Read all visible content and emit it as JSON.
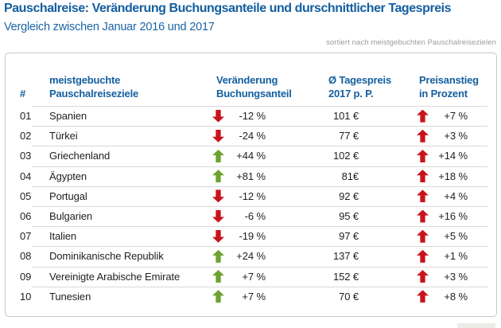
{
  "header": {
    "title": "Pauschalreise: Veränderung Buchungsanteile und durschnittlicher Tagespreis",
    "subtitle": "Vergleich zwischen Januar 2016 und 2017",
    "sort_note": "sortiert nach meistgebuchten Pauschalreisezielen"
  },
  "colors": {
    "brand_blue": "#145fa0",
    "arrow_red": "#c9141c",
    "arrow_green": "#6da32e",
    "row_text": "#1f1f1f",
    "note_gray": "#9b9b9b",
    "table_border": "#c8c8c8",
    "row_separator": "#d8d8d8"
  },
  "table": {
    "columns": {
      "rank": "#",
      "destination": "meistgebuchte\nPauschalreiseziele",
      "change": "Veränderung\nBuchungsanteil",
      "price": "Ø Tagespreis\n2017 p. P.",
      "rise": "Preisanstieg\nin Prozent"
    },
    "rows": [
      {
        "rank": "01",
        "destination": "Spanien",
        "change": "-12 %",
        "change_arrow": "down red",
        "change_icon": "arrow-down-icon",
        "price": "101 €",
        "rise": "+7 %",
        "rise_arrow": "up red",
        "rise_icon": "arrow-up-icon"
      },
      {
        "rank": "02",
        "destination": "Türkei",
        "change": "-24 %",
        "change_arrow": "down red",
        "change_icon": "arrow-down-icon",
        "price": "77 €",
        "rise": "+3 %",
        "rise_arrow": "up red",
        "rise_icon": "arrow-up-icon"
      },
      {
        "rank": "03",
        "destination": "Griechenland",
        "change": "+44 %",
        "change_arrow": "up green",
        "change_icon": "arrow-up-icon",
        "price": "102 €",
        "rise": "+14 %",
        "rise_arrow": "up red",
        "rise_icon": "arrow-up-icon"
      },
      {
        "rank": "04",
        "destination": "Ägypten",
        "change": "+81 %",
        "change_arrow": "up green",
        "change_icon": "arrow-up-icon",
        "price": "81€",
        "rise": "+18 %",
        "rise_arrow": "up red",
        "rise_icon": "arrow-up-icon"
      },
      {
        "rank": "05",
        "destination": "Portugal",
        "change": "-12 %",
        "change_arrow": "down red",
        "change_icon": "arrow-down-icon",
        "price": "92 €",
        "rise": "+4 %",
        "rise_arrow": "up red",
        "rise_icon": "arrow-up-icon"
      },
      {
        "rank": "06",
        "destination": "Bulgarien",
        "change": "-6 %",
        "change_arrow": "down red",
        "change_icon": "arrow-down-icon",
        "price": "95 €",
        "rise": "+16 %",
        "rise_arrow": "up red",
        "rise_icon": "arrow-up-icon"
      },
      {
        "rank": "07",
        "destination": "Italien",
        "change": "-19 %",
        "change_arrow": "down red",
        "change_icon": "arrow-down-icon",
        "price": "97 €",
        "rise": "+5 %",
        "rise_arrow": "up red",
        "rise_icon": "arrow-up-icon"
      },
      {
        "rank": "08",
        "destination": "Dominikanische Republik",
        "change": "+24 %",
        "change_arrow": "up green",
        "change_icon": "arrow-up-icon",
        "price": "137 €",
        "rise": "+1 %",
        "rise_arrow": "up red",
        "rise_icon": "arrow-up-icon"
      },
      {
        "rank": "09",
        "destination": "Vereinigte Arabische Emirate",
        "change": "+7 %",
        "change_arrow": "up green",
        "change_icon": "arrow-up-icon",
        "price": "152 €",
        "rise": "+3 %",
        "rise_arrow": "up red",
        "rise_icon": "arrow-up-icon"
      },
      {
        "rank": "10",
        "destination": "Tunesien",
        "change": "+7 %",
        "change_arrow": "up green",
        "change_icon": "arrow-up-icon",
        "price": "70 €",
        "rise": "+8 %",
        "rise_arrow": "up red",
        "rise_icon": "arrow-up-icon"
      }
    ]
  },
  "chart_data": {
    "type": "table",
    "title": "Pauschalreise: Veränderung Buchungsanteile und durschnittlicher Tagespreis",
    "subtitle": "Vergleich zwischen Januar 2016 und 2017",
    "note": "sortiert nach meistgebuchten Pauschalreisezielen",
    "columns": [
      "#",
      "meistgebuchte Pauschalreiseziele",
      "Veränderung Buchungsanteil",
      "Ø Tagespreis 2017 p. P.",
      "Preisanstieg in Prozent"
    ],
    "rows": [
      {
        "rank": 1,
        "destination": "Spanien",
        "change_booking_share_pct": -12,
        "avg_daily_price_eur": 101,
        "price_increase_pct": 7
      },
      {
        "rank": 2,
        "destination": "Türkei",
        "change_booking_share_pct": -24,
        "avg_daily_price_eur": 77,
        "price_increase_pct": 3
      },
      {
        "rank": 3,
        "destination": "Griechenland",
        "change_booking_share_pct": 44,
        "avg_daily_price_eur": 102,
        "price_increase_pct": 14
      },
      {
        "rank": 4,
        "destination": "Ägypten",
        "change_booking_share_pct": 81,
        "avg_daily_price_eur": 81,
        "price_increase_pct": 18
      },
      {
        "rank": 5,
        "destination": "Portugal",
        "change_booking_share_pct": -12,
        "avg_daily_price_eur": 92,
        "price_increase_pct": 4
      },
      {
        "rank": 6,
        "destination": "Bulgarien",
        "change_booking_share_pct": -6,
        "avg_daily_price_eur": 95,
        "price_increase_pct": 16
      },
      {
        "rank": 7,
        "destination": "Italien",
        "change_booking_share_pct": -19,
        "avg_daily_price_eur": 97,
        "price_increase_pct": 5
      },
      {
        "rank": 8,
        "destination": "Dominikanische Republik",
        "change_booking_share_pct": 24,
        "avg_daily_price_eur": 137,
        "price_increase_pct": 1
      },
      {
        "rank": 9,
        "destination": "Vereinigte Arabische Emirate",
        "change_booking_share_pct": 7,
        "avg_daily_price_eur": 152,
        "price_increase_pct": 3
      },
      {
        "rank": 10,
        "destination": "Tunesien",
        "change_booking_share_pct": 7,
        "avg_daily_price_eur": 70,
        "price_increase_pct": 8
      }
    ]
  }
}
